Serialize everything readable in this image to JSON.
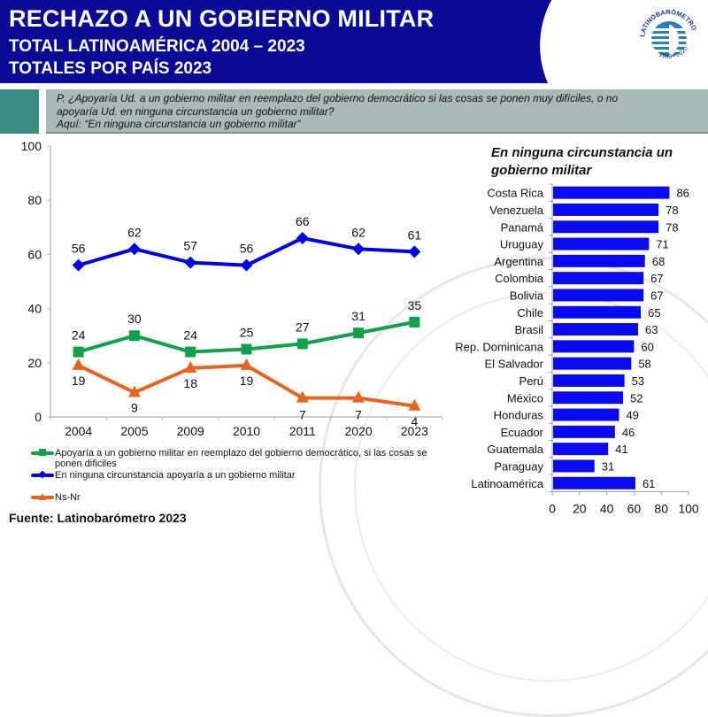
{
  "header": {
    "title": "RECHAZO A UN GOBIERNO MILITAR",
    "subtitle_1": "TOTAL LATINOAMÉRICA 2004 – 2023",
    "subtitle_2": "TOTALES POR PAÍS 2023",
    "logo": {
      "icon": "latinobarometro-logo-icon",
      "text_top": "LATINOBARÓMETRO",
      "years": "1995 - 2020"
    }
  },
  "question": {
    "line1": "P. ¿Apoyaría Ud. a un gobierno militar en reemplazo del gobierno democrático si las cosas se ponen muy difíciles, o no",
    "line2": "apoyaría Ud. en ninguna circunstancia un gobierno militar?",
    "line3": "Aquí: “En ninguna circunstancia un gobierno militar”"
  },
  "source": "Fuente: Latinobarómetro 2023",
  "colors": {
    "header_bg": "#0a0a96",
    "blue": "#0000e6",
    "green": "#13a04a",
    "orange": "#e8641e",
    "bar": "#0a0af0"
  },
  "chart_data": [
    {
      "type": "line",
      "title": "",
      "xlabel": "",
      "ylabel": "",
      "categories": [
        "2004",
        "2005",
        "2009",
        "2010",
        "2011",
        "2020",
        "2023"
      ],
      "ylim": [
        0,
        100
      ],
      "yticks": [
        0,
        20,
        40,
        60,
        80,
        100
      ],
      "grid": false,
      "legend_position": "bottom",
      "series": [
        {
          "name": "Apoyaría a un gobierno militar en reemplazo del gobierno democrático, si las cosas se ponen dificiles",
          "color": "#13a04a",
          "marker": "square",
          "values": [
            24,
            30,
            24,
            25,
            27,
            31,
            35
          ]
        },
        {
          "name": "En ninguna circunstancia apoyaría a un gobierno militar",
          "color": "#0000e6",
          "marker": "diamond",
          "values": [
            56,
            62,
            57,
            56,
            66,
            62,
            61
          ]
        },
        {
          "name": "Ns-Nr",
          "color": "#e8641e",
          "marker": "triangle",
          "values": [
            19,
            9,
            18,
            19,
            7,
            7,
            4
          ]
        }
      ]
    },
    {
      "type": "bar",
      "orientation": "horizontal",
      "title": "En ninguna circunstancia un gobierno militar",
      "xlabel": "",
      "ylabel": "",
      "categories": [
        "Costa Rica",
        "Venezuela",
        "Panamá",
        "Uruguay",
        "Argentina",
        "Colombia",
        "Bolivia",
        "Chile",
        "Brasil",
        "Rep. Dominicana",
        "El Salvador",
        "Perú",
        "México",
        "Honduras",
        "Ecuador",
        "Guatemala",
        "Paraguay",
        "Latinoamérica"
      ],
      "values": [
        86,
        78,
        78,
        71,
        68,
        67,
        67,
        65,
        63,
        60,
        58,
        53,
        52,
        49,
        46,
        41,
        31,
        61
      ],
      "xlim": [
        0,
        100
      ],
      "xticks": [
        0,
        20,
        40,
        60,
        80,
        100
      ],
      "grid": false
    }
  ]
}
